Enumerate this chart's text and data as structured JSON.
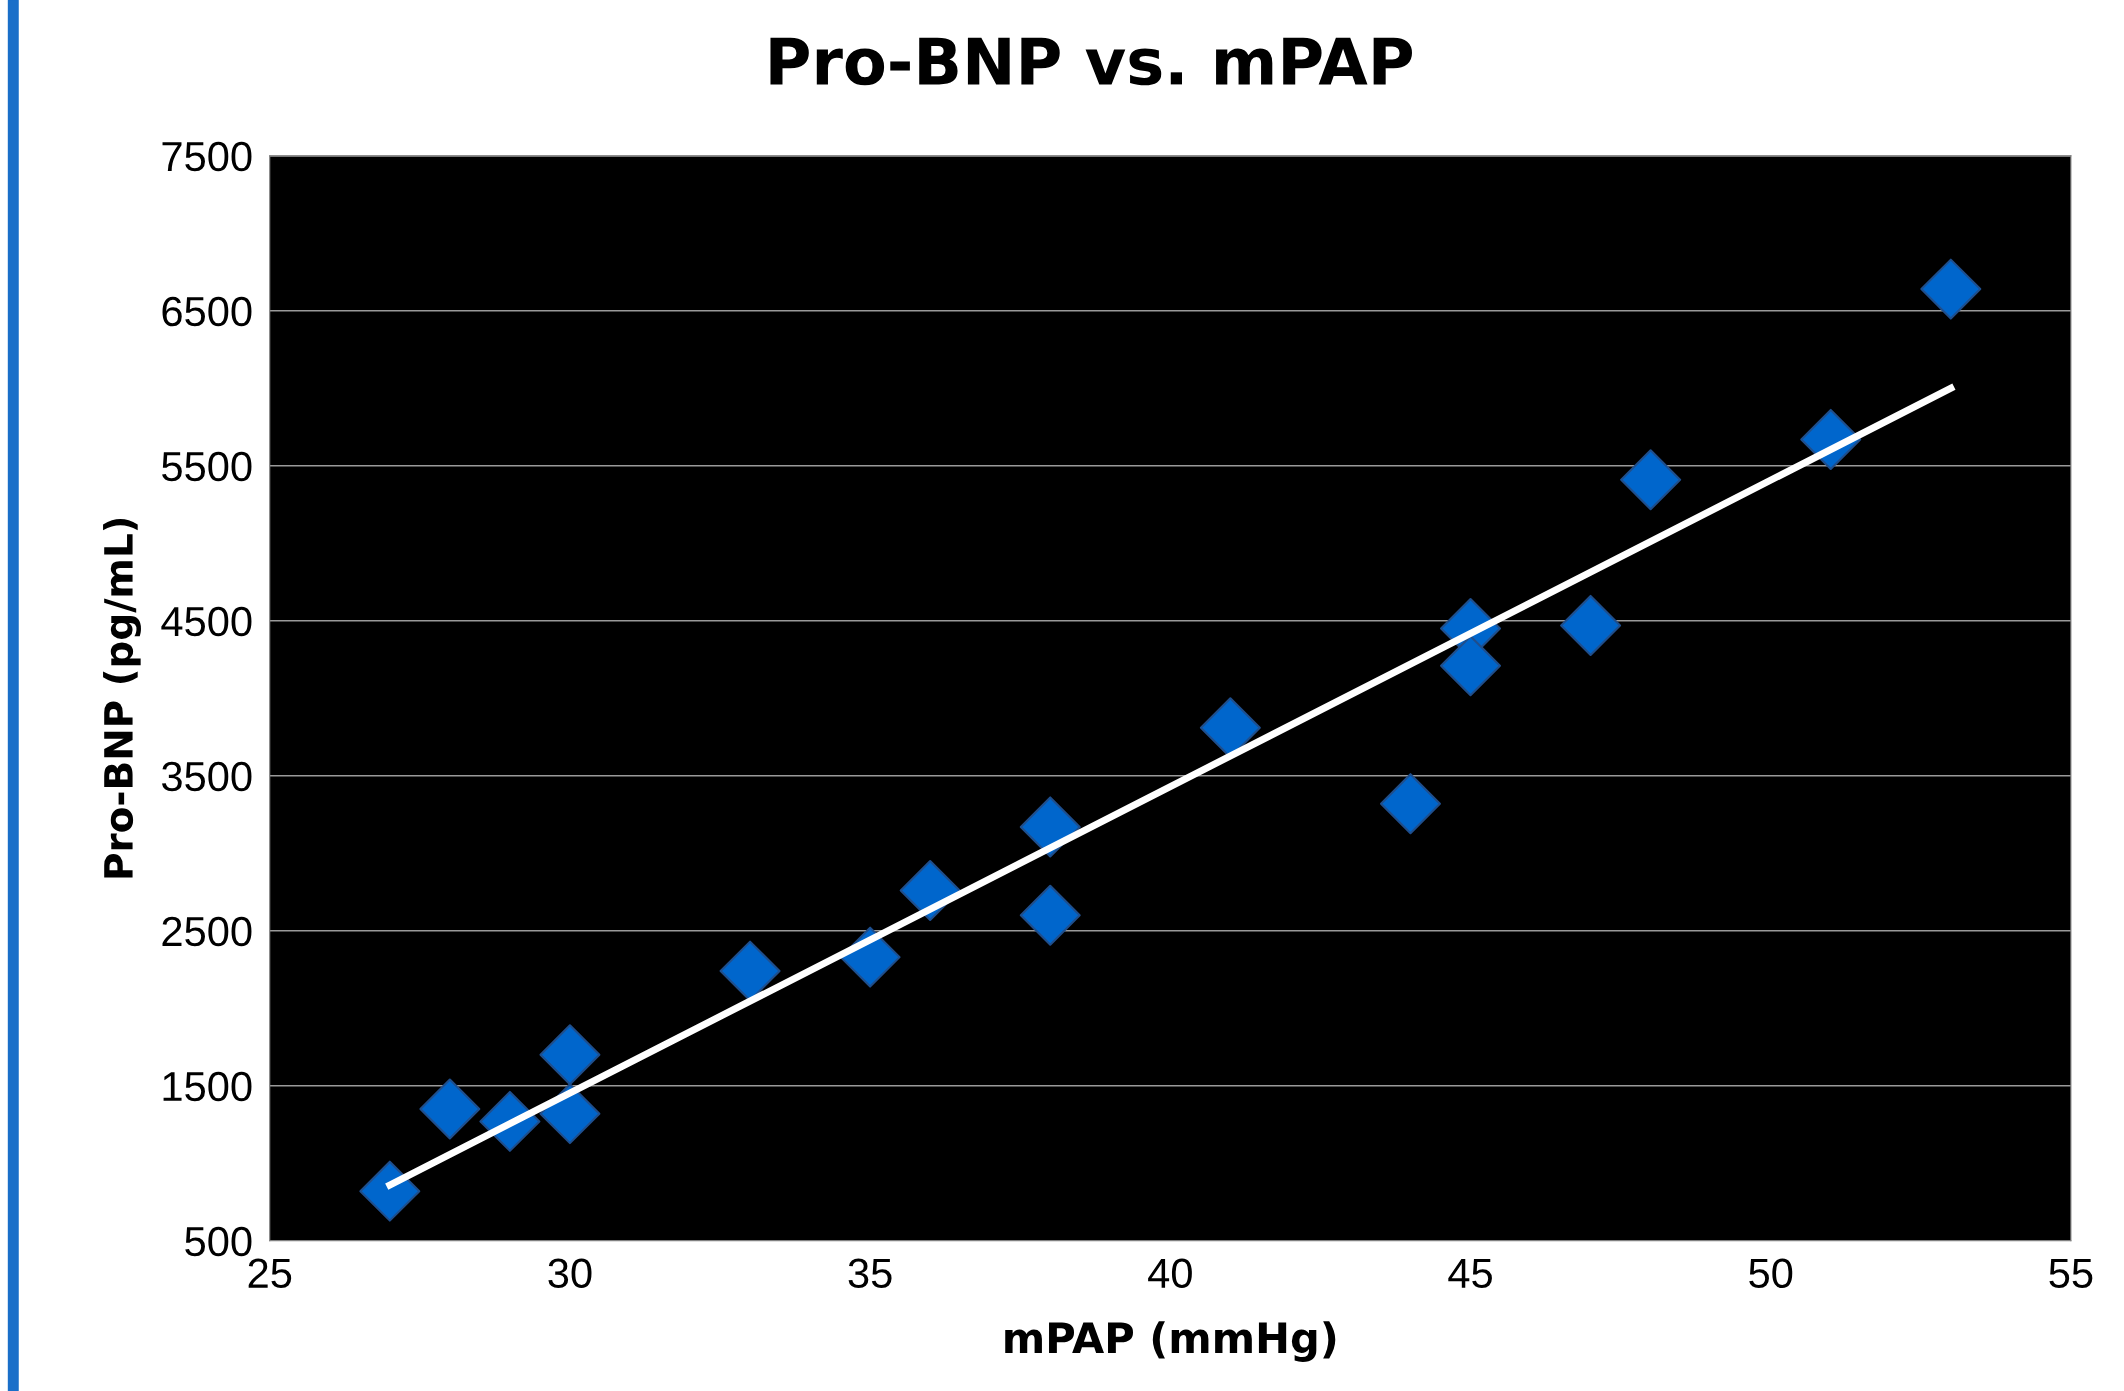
{
  "chart_data": {
    "type": "scatter",
    "title": "Pro-BNP vs. mPAP",
    "xlabel": "mPAP (mmHg)",
    "ylabel": "Pro-BNP (pg/mL)",
    "series": [
      {
        "color": "#0066cc",
        "marker": "diamond",
        "x": [
          27,
          28,
          29,
          30,
          30,
          33,
          35,
          36,
          38,
          38,
          41,
          44,
          45,
          45,
          47,
          48,
          51,
          53
        ],
        "values": [
          820,
          1350,
          1270,
          1700,
          1320,
          2240,
          2330,
          2760,
          3170,
          2600,
          3810,
          3320,
          4450,
          4210,
          4470,
          5410,
          5670,
          6640
        ]
      },
      {
        "type": "line",
        "color": "#ffffff",
        "marker": "none",
        "line_style": "solid",
        "x": [
          27,
          53
        ],
        "values": [
          860,
          6000
        ]
      }
    ],
    "xlim": [
      25,
      55
    ],
    "xticks": [
      25,
      30,
      35,
      40,
      45,
      50,
      55
    ],
    "ylim": [
      500,
      7500
    ],
    "yticks": [
      500,
      1500,
      2500,
      3500,
      4500,
      5500,
      6500,
      7500
    ],
    "grid": "y",
    "legend": false
  }
}
